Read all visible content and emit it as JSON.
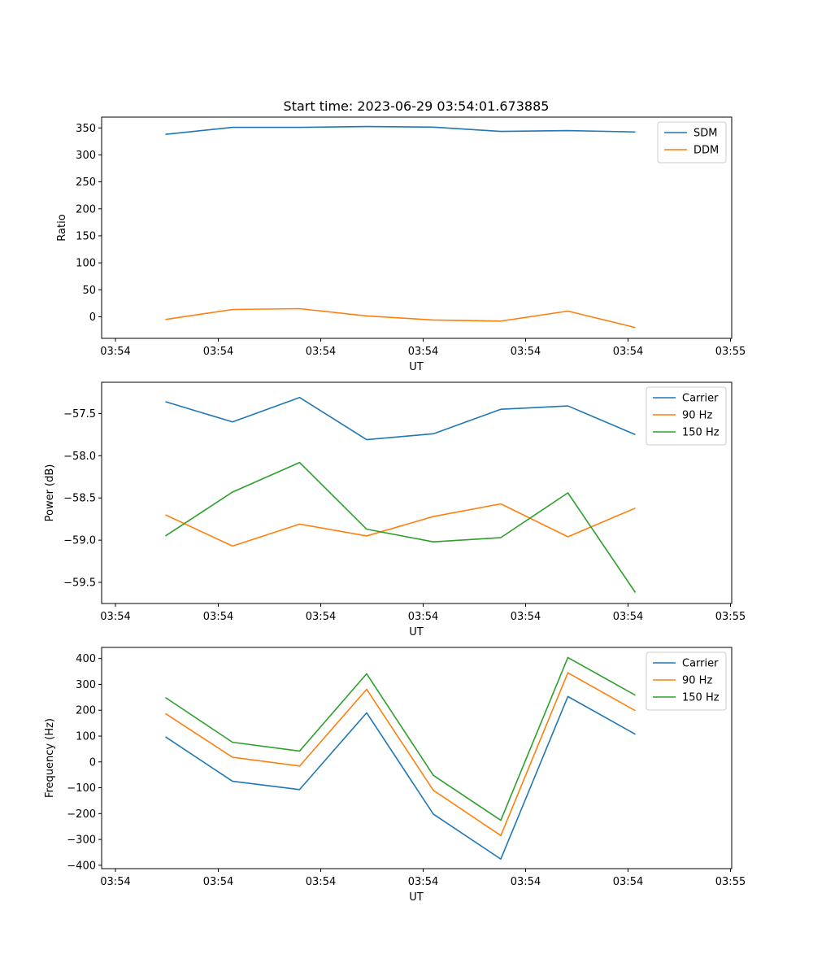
{
  "title": "Start time: 2023-06-29 03:54:01.673885",
  "chart_data": [
    {
      "type": "line",
      "ylabel": "Ratio",
      "xlabel": "UT",
      "x_tick_labels": [
        "03:54",
        "03:54",
        "03:54",
        "03:54",
        "03:54",
        "03:54",
        "03:55"
      ],
      "y_ticks": [
        0,
        50,
        100,
        150,
        200,
        250,
        300,
        350
      ],
      "ylim": [
        -40,
        370
      ],
      "legend_position": "top-right",
      "series": [
        {
          "name": "SDM",
          "color": "#1f77b4",
          "values": [
            338,
            351,
            351,
            352.5,
            351.5,
            343.5,
            345,
            342.5
          ]
        },
        {
          "name": "DDM",
          "color": "#ff7f0e",
          "values": [
            -5,
            13.5,
            15,
            1.5,
            -6,
            -8,
            10.5,
            -20
          ]
        }
      ]
    },
    {
      "type": "line",
      "ylabel": "Power (dB)",
      "xlabel": "UT",
      "x_tick_labels": [
        "03:54",
        "03:54",
        "03:54",
        "03:54",
        "03:54",
        "03:54",
        "03:55"
      ],
      "y_ticks": [
        -57.5,
        -58.0,
        -58.5,
        -59.0,
        -59.5
      ],
      "y_tick_labels": [
        "−57.5",
        "−58.0",
        "−58.5",
        "−59.0",
        "−59.5"
      ],
      "ylim": [
        -59.75,
        -57.13
      ],
      "legend_position": "top-right",
      "series": [
        {
          "name": "Carrier",
          "color": "#1f77b4",
          "values": [
            -57.36,
            -57.6,
            -57.31,
            -57.81,
            -57.74,
            -57.45,
            -57.41,
            -57.75
          ]
        },
        {
          "name": "90 Hz",
          "color": "#ff7f0e",
          "values": [
            -58.7,
            -59.07,
            -58.81,
            -58.95,
            -58.72,
            -58.57,
            -58.96,
            -58.62
          ]
        },
        {
          "name": "150 Hz",
          "color": "#2ca02c",
          "values": [
            -58.95,
            -58.43,
            -58.08,
            -58.87,
            -59.02,
            -58.97,
            -58.44,
            -59.62
          ]
        }
      ]
    },
    {
      "type": "line",
      "ylabel": "Frequency (Hz)",
      "xlabel": "UT",
      "x_tick_labels": [
        "03:54",
        "03:54",
        "03:54",
        "03:54",
        "03:54",
        "03:54",
        "03:55"
      ],
      "y_ticks": [
        400,
        300,
        200,
        100,
        0,
        -100,
        -200,
        -300,
        -400
      ],
      "y_tick_labels": [
        "400",
        "300",
        "200",
        "100",
        "0",
        "−100",
        "−200",
        "−300",
        "−400"
      ],
      "ylim": [
        -413,
        443
      ],
      "legend_position": "top-right",
      "series": [
        {
          "name": "Carrier",
          "color": "#1f77b4",
          "values": [
            97,
            -75,
            -107,
            190,
            -202,
            -376,
            253,
            107
          ]
        },
        {
          "name": "90 Hz",
          "color": "#ff7f0e",
          "values": [
            187,
            18,
            -16,
            281,
            -110,
            -285,
            345,
            198
          ]
        },
        {
          "name": "150 Hz",
          "color": "#2ca02c",
          "values": [
            249,
            76,
            42,
            341,
            -52,
            -226,
            404,
            258
          ]
        }
      ]
    }
  ]
}
